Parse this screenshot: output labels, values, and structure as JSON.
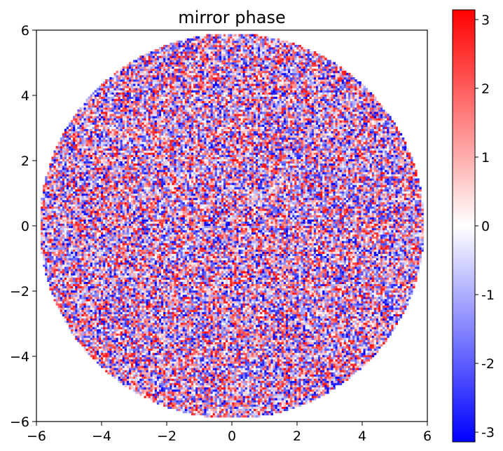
{
  "chart_data": {
    "type": "heatmap",
    "title": "mirror phase",
    "xlabel": "",
    "ylabel": "",
    "xlim": [
      -6,
      6
    ],
    "ylim": [
      -6,
      6
    ],
    "x_ticks": [
      "−6",
      "−4",
      "−2",
      "0",
      "2",
      "4",
      "6"
    ],
    "y_ticks": [
      "−6",
      "−4",
      "−2",
      "0",
      "2",
      "4",
      "6"
    ],
    "aperture": {
      "shape": "circle",
      "center": [
        0,
        0
      ],
      "radius": 5.9
    },
    "grid_resolution": 0.066,
    "values_description": "uniformly random phase in [-3.14, 3.14] inside the circular aperture, 0 outside",
    "colormap": {
      "name": "bwr",
      "low": "#0000ff",
      "mid": "#ffffff",
      "high": "#ff0000"
    },
    "colorbar": {
      "range": [
        -3.14159,
        3.14159
      ],
      "ticks": [
        3,
        2,
        1,
        0,
        -1,
        -2,
        -3
      ],
      "tick_labels": [
        "3",
        "2",
        "1",
        "0",
        "-1",
        "-2",
        "-3"
      ]
    },
    "grid": false,
    "legend": "none"
  }
}
